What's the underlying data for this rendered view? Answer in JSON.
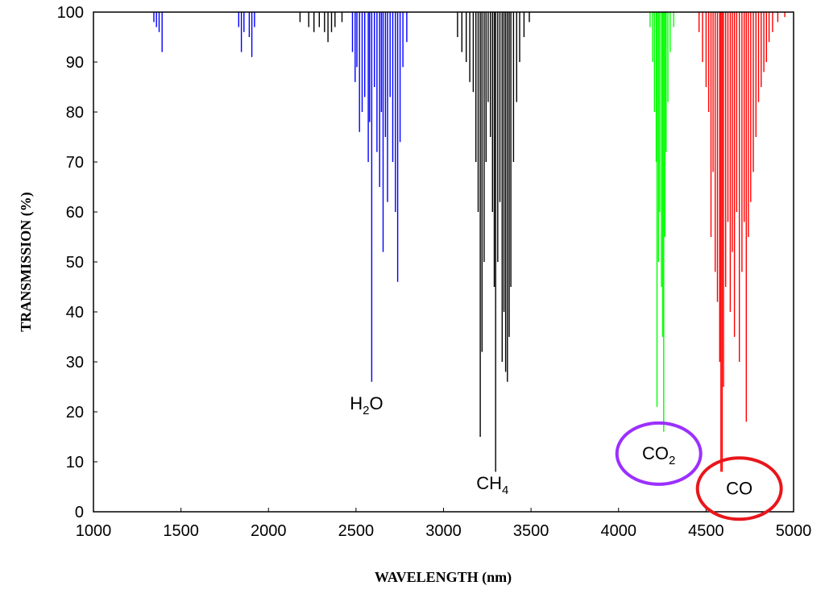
{
  "chart_data": {
    "type": "line",
    "title": "",
    "xlabel": "WAVELENGTH (nm)",
    "ylabel": "TRANSMISSION (%)",
    "xlim": [
      1000,
      5000
    ],
    "ylim": [
      0,
      100
    ],
    "x_ticks": [
      1000,
      1500,
      2000,
      2500,
      3000,
      3500,
      4000,
      4500,
      5000
    ],
    "y_ticks": [
      0,
      10,
      20,
      30,
      40,
      50,
      60,
      70,
      80,
      90,
      100
    ],
    "grid": false,
    "series": [
      {
        "species": "H2O",
        "color": "#0000ff",
        "absorption_lines": [
          [
            1345,
            98
          ],
          [
            1360,
            97
          ],
          [
            1375,
            96
          ],
          [
            1392,
            92
          ],
          [
            1830,
            97
          ],
          [
            1845,
            92
          ],
          [
            1860,
            96
          ],
          [
            1890,
            95
          ],
          [
            1905,
            91
          ],
          [
            1920,
            97
          ],
          [
            2480,
            92
          ],
          [
            2495,
            86
          ],
          [
            2505,
            89
          ],
          [
            2520,
            76
          ],
          [
            2535,
            80
          ],
          [
            2550,
            83
          ],
          [
            2570,
            70
          ],
          [
            2578,
            78
          ],
          [
            2590,
            26
          ],
          [
            2605,
            85
          ],
          [
            2620,
            72
          ],
          [
            2635,
            65
          ],
          [
            2645,
            80
          ],
          [
            2655,
            52
          ],
          [
            2668,
            75
          ],
          [
            2680,
            62
          ],
          [
            2695,
            83
          ],
          [
            2710,
            70
          ],
          [
            2725,
            60
          ],
          [
            2738,
            46
          ],
          [
            2752,
            74
          ],
          [
            2768,
            89
          ],
          [
            2790,
            94
          ]
        ]
      },
      {
        "species": "CH4",
        "color": "#000000",
        "absorption_lines": [
          [
            2180,
            98
          ],
          [
            2230,
            97
          ],
          [
            2260,
            96
          ],
          [
            2290,
            97
          ],
          [
            2320,
            96
          ],
          [
            2340,
            94
          ],
          [
            2360,
            96
          ],
          [
            2380,
            97
          ],
          [
            2420,
            98
          ],
          [
            3080,
            95
          ],
          [
            3105,
            92
          ],
          [
            3130,
            90
          ],
          [
            3150,
            86
          ],
          [
            3170,
            84
          ],
          [
            3185,
            70
          ],
          [
            3198,
            60
          ],
          [
            3210,
            15
          ],
          [
            3220,
            32
          ],
          [
            3232,
            50
          ],
          [
            3243,
            70
          ],
          [
            3255,
            82
          ],
          [
            3268,
            75
          ],
          [
            3280,
            60
          ],
          [
            3290,
            45
          ],
          [
            3298,
            8
          ],
          [
            3310,
            50
          ],
          [
            3322,
            62
          ],
          [
            3335,
            30
          ],
          [
            3345,
            40
          ],
          [
            3355,
            28
          ],
          [
            3365,
            26
          ],
          [
            3375,
            35
          ],
          [
            3385,
            45
          ],
          [
            3400,
            70
          ],
          [
            3418,
            82
          ],
          [
            3435,
            90
          ],
          [
            3460,
            95
          ],
          [
            3490,
            98
          ]
        ]
      },
      {
        "species": "CO2",
        "color": "#00ff00",
        "absorption_lines": [
          [
            4180,
            97
          ],
          [
            4195,
            90
          ],
          [
            4205,
            80
          ],
          [
            4215,
            70
          ],
          [
            4220,
            21
          ],
          [
            4228,
            50
          ],
          [
            4235,
            60
          ],
          [
            4245,
            45
          ],
          [
            4252,
            35
          ],
          [
            4258,
            16
          ],
          [
            4265,
            55
          ],
          [
            4272,
            72
          ],
          [
            4282,
            82
          ],
          [
            4295,
            92
          ],
          [
            4315,
            97
          ]
        ]
      },
      {
        "species": "CO",
        "color": "#ff0000",
        "absorption_lines": [
          [
            4460,
            96
          ],
          [
            4480,
            90
          ],
          [
            4500,
            85
          ],
          [
            4515,
            80
          ],
          [
            4528,
            55
          ],
          [
            4540,
            68
          ],
          [
            4552,
            48
          ],
          [
            4565,
            42
          ],
          [
            4578,
            30
          ],
          [
            4585,
            8
          ],
          [
            4592,
            8
          ],
          [
            4600,
            25
          ],
          [
            4612,
            45
          ],
          [
            4625,
            58
          ],
          [
            4638,
            40
          ],
          [
            4650,
            52
          ],
          [
            4662,
            35
          ],
          [
            4675,
            60
          ],
          [
            4690,
            30
          ],
          [
            4705,
            48
          ],
          [
            4718,
            58
          ],
          [
            4730,
            18
          ],
          [
            4742,
            55
          ],
          [
            4755,
            62
          ],
          [
            4770,
            68
          ],
          [
            4785,
            75
          ],
          [
            4800,
            82
          ],
          [
            4815,
            85
          ],
          [
            4830,
            88
          ],
          [
            4845,
            90
          ],
          [
            4860,
            94
          ],
          [
            4880,
            96
          ],
          [
            4910,
            98
          ],
          [
            4950,
            99
          ]
        ]
      }
    ],
    "annotations": [
      {
        "label": "H",
        "sub": "2",
        "tail": "O",
        "x": 2560,
        "y": 20.5
      },
      {
        "label": "CH",
        "sub": "4",
        "tail": "",
        "x": 3280,
        "y": 4.5
      },
      {
        "label": "CO",
        "sub": "2",
        "tail": "",
        "x": 4230,
        "y": 10.5,
        "circle_color": "#9b30ff"
      },
      {
        "label": "CO",
        "sub": "",
        "tail": "",
        "x": 4690,
        "y": 3.5,
        "circle_color": "#e8161b"
      }
    ]
  }
}
